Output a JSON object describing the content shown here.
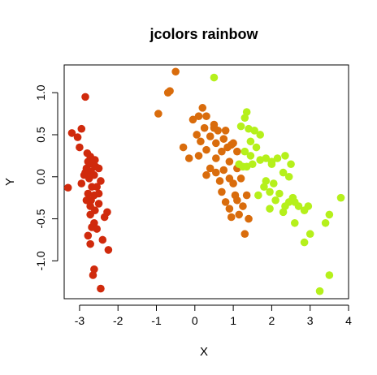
{
  "chart_data": {
    "type": "scatter",
    "title": "jcolors rainbow",
    "xlabel": "X",
    "ylabel": "Y",
    "xlim": [
      -3.4,
      4.0
    ],
    "ylim": [
      -1.45,
      1.33
    ],
    "xticks": [
      -3,
      -2,
      -1,
      0,
      1,
      2,
      3,
      4
    ],
    "yticks": [
      -1.0,
      -0.5,
      0.0,
      0.5,
      1.0
    ],
    "ytick_labels": [
      "-1.0",
      "-0.5",
      "0.0",
      "0.5",
      "1.0"
    ],
    "grid": false,
    "legend": "none",
    "colors": [
      "#d02a0c",
      "#d96c0c",
      "#b5f01b"
    ],
    "series": [
      {
        "color": "#d02a0c",
        "points": [
          [
            -2.85,
            0.95
          ],
          [
            -3.2,
            0.52
          ],
          [
            -2.95,
            0.57
          ],
          [
            -3.05,
            0.47
          ],
          [
            -3.0,
            0.35
          ],
          [
            -2.8,
            0.28
          ],
          [
            -2.72,
            0.24
          ],
          [
            -2.65,
            0.2
          ],
          [
            -2.78,
            0.18
          ],
          [
            -2.68,
            0.15
          ],
          [
            -2.58,
            0.12
          ],
          [
            -2.82,
            0.1
          ],
          [
            -2.5,
            0.1
          ],
          [
            -2.7,
            0.06
          ],
          [
            -2.88,
            0.02
          ],
          [
            -2.62,
            0.02
          ],
          [
            -2.75,
            -0.02
          ],
          [
            -2.45,
            -0.05
          ],
          [
            -2.95,
            -0.08
          ],
          [
            -2.68,
            -0.12
          ],
          [
            -2.55,
            -0.12
          ],
          [
            -3.3,
            -0.13
          ],
          [
            -2.78,
            -0.2
          ],
          [
            -2.62,
            -0.22
          ],
          [
            -2.7,
            -0.28
          ],
          [
            -2.82,
            -0.28
          ],
          [
            -2.5,
            -0.32
          ],
          [
            -2.72,
            -0.35
          ],
          [
            -2.6,
            -0.4
          ],
          [
            -2.28,
            -0.42
          ],
          [
            -2.72,
            -0.45
          ],
          [
            -2.35,
            -0.48
          ],
          [
            -2.62,
            -0.55
          ],
          [
            -2.68,
            -0.6
          ],
          [
            -2.55,
            -0.62
          ],
          [
            -2.78,
            -0.7
          ],
          [
            -2.4,
            -0.75
          ],
          [
            -2.72,
            -0.8
          ],
          [
            -2.25,
            -0.87
          ],
          [
            -2.62,
            -1.1
          ],
          [
            -2.65,
            -1.17
          ],
          [
            -2.45,
            -1.33
          ],
          [
            -2.6,
            0.2
          ],
          [
            -2.85,
            0.05
          ],
          [
            -2.5,
            -0.2
          ]
        ]
      },
      {
        "color": "#d96c0c",
        "points": [
          [
            -0.5,
            1.25
          ],
          [
            -0.7,
            1.0
          ],
          [
            -0.65,
            1.02
          ],
          [
            -0.95,
            0.75
          ],
          [
            0.2,
            0.82
          ],
          [
            0.1,
            0.72
          ],
          [
            -0.05,
            0.68
          ],
          [
            0.3,
            0.72
          ],
          [
            0.5,
            0.62
          ],
          [
            0.25,
            0.58
          ],
          [
            0.6,
            0.55
          ],
          [
            0.8,
            0.55
          ],
          [
            0.05,
            0.5
          ],
          [
            0.4,
            0.48
          ],
          [
            0.75,
            0.45
          ],
          [
            0.15,
            0.42
          ],
          [
            0.55,
            0.4
          ],
          [
            0.95,
            0.38
          ],
          [
            -0.3,
            0.35
          ],
          [
            0.3,
            0.32
          ],
          [
            0.7,
            0.3
          ],
          [
            1.1,
            0.3
          ],
          [
            0.1,
            0.25
          ],
          [
            0.55,
            0.22
          ],
          [
            -0.15,
            0.22
          ],
          [
            0.9,
            0.18
          ],
          [
            0.4,
            0.1
          ],
          [
            0.75,
            0.08
          ],
          [
            1.1,
            0.1
          ],
          [
            0.55,
            0.05
          ],
          [
            0.3,
            0.02
          ],
          [
            0.9,
            -0.02
          ],
          [
            1.2,
            -0.02
          ],
          [
            0.65,
            -0.05
          ],
          [
            1.0,
            -0.08
          ],
          [
            0.7,
            -0.18
          ],
          [
            1.05,
            -0.22
          ],
          [
            1.35,
            -0.22
          ],
          [
            0.8,
            -0.3
          ],
          [
            1.1,
            -0.28
          ],
          [
            1.25,
            -0.35
          ],
          [
            0.9,
            -0.38
          ],
          [
            1.15,
            -0.45
          ],
          [
            0.95,
            -0.48
          ],
          [
            1.4,
            -0.5
          ],
          [
            1.3,
            -0.68
          ],
          [
            0.5,
            0.58
          ],
          [
            0.85,
            0.35
          ],
          [
            1.0,
            0.4
          ]
        ]
      },
      {
        "color": "#b5f01b",
        "points": [
          [
            0.5,
            1.18
          ],
          [
            1.35,
            0.77
          ],
          [
            1.3,
            0.7
          ],
          [
            1.2,
            0.6
          ],
          [
            1.4,
            0.57
          ],
          [
            1.55,
            0.55
          ],
          [
            1.7,
            0.5
          ],
          [
            1.45,
            0.42
          ],
          [
            1.6,
            0.35
          ],
          [
            1.3,
            0.3
          ],
          [
            1.45,
            0.25
          ],
          [
            2.35,
            0.25
          ],
          [
            2.15,
            0.22
          ],
          [
            1.85,
            0.22
          ],
          [
            2.0,
            0.18
          ],
          [
            2.5,
            0.15
          ],
          [
            1.35,
            0.12
          ],
          [
            1.5,
            0.15
          ],
          [
            1.25,
            0.12
          ],
          [
            1.15,
            0.15
          ],
          [
            2.3,
            0.05
          ],
          [
            2.45,
            0.0
          ],
          [
            1.85,
            -0.05
          ],
          [
            2.05,
            -0.08
          ],
          [
            1.8,
            -0.12
          ],
          [
            1.95,
            -0.18
          ],
          [
            2.2,
            -0.2
          ],
          [
            1.65,
            -0.22
          ],
          [
            2.55,
            -0.25
          ],
          [
            2.1,
            -0.28
          ],
          [
            3.8,
            -0.25
          ],
          [
            2.45,
            -0.3
          ],
          [
            2.35,
            -0.35
          ],
          [
            2.7,
            -0.35
          ],
          [
            2.95,
            -0.35
          ],
          [
            1.95,
            -0.38
          ],
          [
            2.3,
            -0.42
          ],
          [
            2.85,
            -0.4
          ],
          [
            3.5,
            -0.45
          ],
          [
            2.6,
            -0.55
          ],
          [
            3.4,
            -0.55
          ],
          [
            3.0,
            -0.68
          ],
          [
            2.85,
            -0.78
          ],
          [
            3.5,
            -1.17
          ],
          [
            3.25,
            -1.36
          ],
          [
            2.0,
            0.15
          ],
          [
            1.7,
            0.2
          ],
          [
            2.6,
            -0.3
          ]
        ]
      }
    ]
  }
}
